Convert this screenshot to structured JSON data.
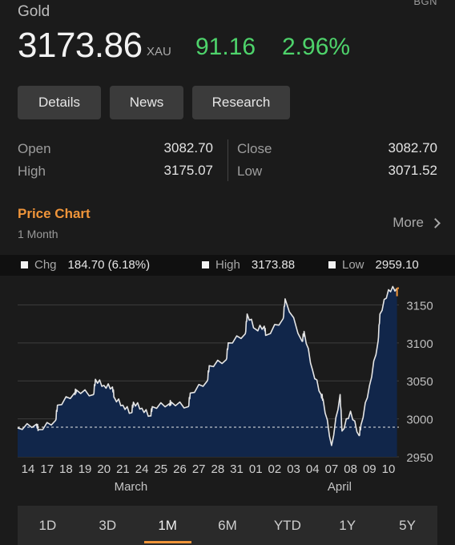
{
  "header": {
    "name": "Gold",
    "source": "BGN",
    "price": "3173.86",
    "currency": "XAU",
    "change": "91.16",
    "change_pct": "2.96%",
    "accent_up": "#4ed36b"
  },
  "actions": {
    "details": "Details",
    "news": "News",
    "research": "Research"
  },
  "stats": {
    "open_label": "Open",
    "open_value": "3082.70",
    "high_label": "High",
    "high_value": "3175.07",
    "close_label": "Close",
    "close_value": "3082.70",
    "low_label": "Low",
    "low_value": "3071.52"
  },
  "price_chart": {
    "title": "Price Chart",
    "period": "1 Month",
    "more": "More",
    "accent": "#f0953a"
  },
  "summary": {
    "chg_label": "Chg",
    "chg_value": "184.70 (6.18%)",
    "high_label": "High",
    "high_value": "3173.88",
    "low_label": "Low",
    "low_value": "2959.10"
  },
  "chart_data": {
    "type": "area",
    "ylim": [
      2950,
      3180
    ],
    "yticks": [
      3150,
      3100,
      3050,
      3000,
      2950
    ],
    "reference_line": 2989,
    "xtick_labels": [
      "14",
      "17",
      "18",
      "19",
      "20",
      "21",
      "24",
      "25",
      "26",
      "27",
      "28",
      "31",
      "01",
      "02",
      "03",
      "04",
      "07",
      "08",
      "09",
      "10"
    ],
    "month_labels": [
      {
        "label": "March",
        "tick": "21"
      },
      {
        "label": "April",
        "tick": "07"
      }
    ],
    "points": [
      [
        "14",
        2988
      ],
      [
        "14",
        2993
      ],
      [
        "17",
        2986
      ],
      [
        "17",
        2998
      ],
      [
        "18",
        3018
      ],
      [
        "18",
        3034
      ],
      [
        "19",
        3038
      ],
      [
        "19",
        3032
      ],
      [
        "20",
        3052
      ],
      [
        "20",
        3044
      ],
      [
        "20",
        3042
      ],
      [
        "21",
        3028
      ],
      [
        "21",
        3018
      ],
      [
        "21",
        3008
      ],
      [
        "24",
        3022
      ],
      [
        "24",
        3014
      ],
      [
        "24",
        3004
      ],
      [
        "25",
        3016
      ],
      [
        "25",
        3020
      ],
      [
        "26",
        3022
      ],
      [
        "26",
        3016
      ],
      [
        "27",
        3034
      ],
      [
        "27",
        3050
      ],
      [
        "28",
        3070
      ],
      [
        "28",
        3078
      ],
      [
        "31",
        3100
      ],
      [
        "31",
        3112
      ],
      [
        "01",
        3138
      ],
      [
        "01",
        3118
      ],
      [
        "01",
        3122
      ],
      [
        "02",
        3110
      ],
      [
        "02",
        3132
      ],
      [
        "03",
        3158
      ],
      [
        "03",
        3102
      ],
      [
        "04",
        3115
      ],
      [
        "04",
        3064
      ],
      [
        "04",
        3032
      ],
      [
        "07",
        3026
      ],
      [
        "07",
        2965
      ],
      [
        "07",
        3032
      ],
      [
        "08",
        2984
      ],
      [
        "08",
        3010
      ],
      [
        "08",
        2978
      ],
      [
        "09",
        2992
      ],
      [
        "09",
        3044
      ],
      [
        "09",
        3102
      ],
      [
        "10",
        3138
      ],
      [
        "10",
        3170
      ],
      [
        "10",
        3172
      ]
    ],
    "area_color": "#11264a",
    "line_color": "#e6e6e6"
  },
  "tabs": {
    "active": "1M",
    "items": [
      "1D",
      "3D",
      "1M",
      "6M",
      "YTD",
      "1Y",
      "5Y"
    ]
  }
}
